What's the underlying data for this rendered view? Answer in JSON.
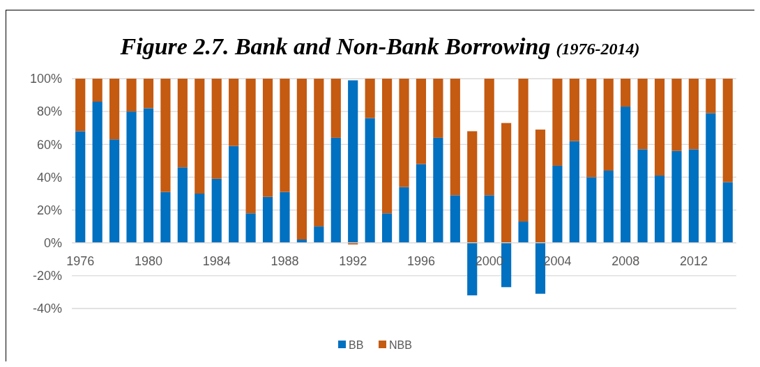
{
  "chart_data": {
    "type": "bar",
    "stacked": true,
    "title": "Figure 2.7. Bank and Non-Bank Borrowing",
    "subtitle": "(1976-2014)",
    "categories": [
      "1976",
      null,
      null,
      null,
      "1980",
      null,
      null,
      null,
      "1984",
      null,
      null,
      null,
      "1988",
      null,
      null,
      null,
      "1992",
      null,
      null,
      null,
      "1996",
      null,
      null,
      null,
      "2000",
      null,
      null,
      null,
      "2004",
      null,
      null,
      null,
      "2008",
      null,
      null,
      null,
      "2012",
      null,
      null
    ],
    "series": [
      {
        "name": "BB",
        "color": "#0070c0",
        "values": [
          68,
          86,
          63,
          80,
          82,
          31,
          46,
          30,
          39,
          59,
          18,
          28,
          31,
          2,
          10,
          64,
          99,
          76,
          18,
          34,
          48,
          64,
          29,
          -32,
          29,
          -27,
          13,
          -31,
          47,
          62,
          40,
          44,
          83,
          57,
          41,
          56,
          57,
          79,
          37
        ]
      },
      {
        "name": "NBB",
        "color": "#c55a11",
        "values": [
          32,
          14,
          37,
          20,
          18,
          69,
          54,
          70,
          61,
          41,
          82,
          72,
          69,
          98,
          90,
          36,
          -1,
          24,
          82,
          66,
          52,
          36,
          71,
          68,
          71,
          73,
          87,
          69,
          53,
          38,
          60,
          56,
          17,
          43,
          59,
          44,
          43,
          21,
          63
        ]
      }
    ],
    "ylim": [
      -40,
      100
    ],
    "yticks": [
      {
        "value": -40,
        "label": "-40%"
      },
      {
        "value": -20,
        "label": "-20%"
      },
      {
        "value": 0,
        "label": "0%"
      },
      {
        "value": 20,
        "label": "20%"
      },
      {
        "value": 40,
        "label": "40%"
      },
      {
        "value": 60,
        "label": "60%"
      },
      {
        "value": 80,
        "label": "80%"
      },
      {
        "value": 100,
        "label": "100%"
      }
    ],
    "grid": "y",
    "legend": "bottom"
  }
}
